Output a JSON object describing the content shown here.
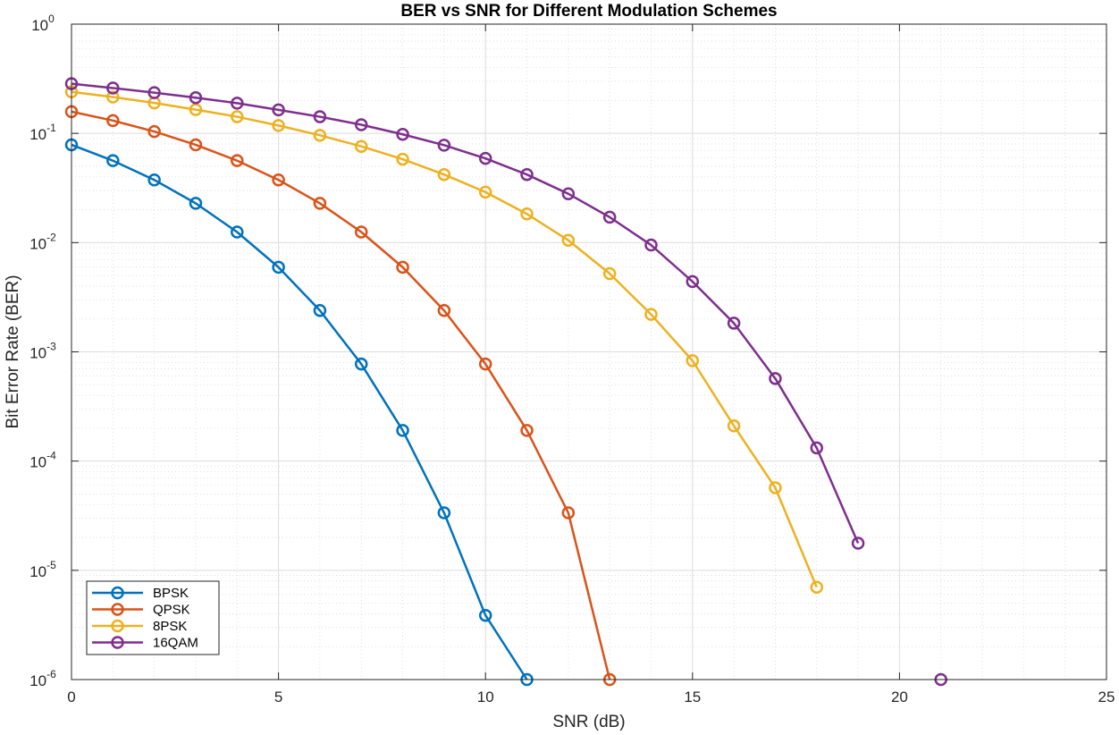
{
  "chart_data": {
    "type": "line",
    "title": "BER vs SNR for Different Modulation Schemes",
    "xlabel": "SNR (dB)",
    "ylabel": "Bit Error Rate (BER)",
    "xlim": [
      0,
      25
    ],
    "ylim": [
      1e-06,
      1
    ],
    "yscale": "log",
    "grid": true,
    "minor_grid": true,
    "legend_position": "bottom-left",
    "x_ticks": [
      "0",
      "5",
      "10",
      "15",
      "20",
      "25"
    ],
    "y_ticks": [
      {
        "base": "10",
        "exp": "0"
      },
      {
        "base": "10",
        "exp": "-1"
      },
      {
        "base": "10",
        "exp": "-2"
      },
      {
        "base": "10",
        "exp": "-3"
      },
      {
        "base": "10",
        "exp": "-4"
      },
      {
        "base": "10",
        "exp": "-5"
      },
      {
        "base": "10",
        "exp": "-6"
      }
    ],
    "series": [
      {
        "name": "BPSK",
        "color": "#0072BD",
        "points": [
          [
            0,
            0.0786
          ],
          [
            1,
            0.0563
          ],
          [
            2,
            0.0375
          ],
          [
            3,
            0.0229
          ],
          [
            4,
            0.0125
          ],
          [
            5,
            0.00595
          ],
          [
            6,
            0.00239
          ],
          [
            7,
            0.000773
          ],
          [
            8,
            0.000191
          ],
          [
            9,
            3.36e-05
          ],
          [
            10,
            3.87e-06
          ],
          [
            11,
            1e-06
          ]
        ]
      },
      {
        "name": "QPSK",
        "color": "#D95319",
        "points": [
          [
            0,
            0.158
          ],
          [
            1,
            0.131
          ],
          [
            2,
            0.104
          ],
          [
            3,
            0.0786
          ],
          [
            4,
            0.0563
          ],
          [
            5,
            0.0375
          ],
          [
            6,
            0.0229
          ],
          [
            7,
            0.0125
          ],
          [
            8,
            0.00595
          ],
          [
            9,
            0.00239
          ],
          [
            10,
            0.000773
          ],
          [
            11,
            0.000191
          ],
          [
            12,
            3.36e-05
          ],
          [
            13,
            1e-06
          ]
        ]
      },
      {
        "name": "8PSK",
        "color": "#EDB120",
        "points": [
          [
            0,
            0.24
          ],
          [
            1,
            0.215
          ],
          [
            2,
            0.19
          ],
          [
            3,
            0.165
          ],
          [
            4,
            0.142
          ],
          [
            5,
            0.118
          ],
          [
            6,
            0.096
          ],
          [
            7,
            0.076
          ],
          [
            8,
            0.058
          ],
          [
            9,
            0.042
          ],
          [
            10,
            0.029
          ],
          [
            11,
            0.0183
          ],
          [
            12,
            0.0105
          ],
          [
            13,
            0.0052
          ],
          [
            14,
            0.0022
          ],
          [
            15,
            0.00083
          ],
          [
            16,
            0.00021
          ],
          [
            17,
            5.7e-05
          ],
          [
            18,
            7e-06
          ]
        ]
      },
      {
        "name": "16QAM",
        "color": "#7E2F8E",
        "points": [
          [
            0,
            0.285
          ],
          [
            1,
            0.26
          ],
          [
            2,
            0.236
          ],
          [
            3,
            0.212
          ],
          [
            4,
            0.189
          ],
          [
            5,
            0.164
          ],
          [
            6,
            0.142
          ],
          [
            7,
            0.12
          ],
          [
            8,
            0.098
          ],
          [
            9,
            0.078
          ],
          [
            10,
            0.059
          ],
          [
            11,
            0.042
          ],
          [
            12,
            0.028
          ],
          [
            13,
            0.0171
          ],
          [
            14,
            0.0095
          ],
          [
            15,
            0.0044
          ],
          [
            16,
            0.00183
          ],
          [
            17,
            0.00057
          ],
          [
            18,
            0.000132
          ],
          [
            19,
            1.77e-05
          ]
        ],
        "extra_points": [
          [
            21,
            1e-06
          ]
        ]
      }
    ]
  }
}
